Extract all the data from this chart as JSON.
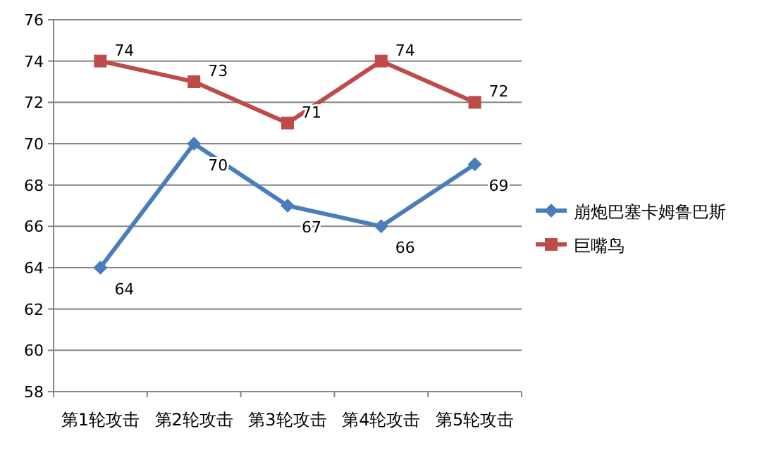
{
  "chart_data": {
    "type": "line",
    "categories": [
      "第1轮攻击",
      "第2轮攻击",
      "第3轮攻击",
      "第4轮攻击",
      "第5轮攻击"
    ],
    "series": [
      {
        "name": "崩炮巴塞卡姆鲁巴斯",
        "color": "#4a7ebb",
        "marker": "diamond",
        "values": [
          64,
          70,
          67,
          66,
          69
        ]
      },
      {
        "name": "巨嘴鸟",
        "color": "#be4b48",
        "marker": "square",
        "values": [
          74,
          73,
          71,
          74,
          72
        ]
      }
    ],
    "ylim": [
      58,
      76
    ],
    "yticks": [
      58,
      60,
      62,
      64,
      66,
      68,
      70,
      72,
      74,
      76
    ],
    "grid": "y",
    "legend": "right",
    "data_labels": true
  }
}
